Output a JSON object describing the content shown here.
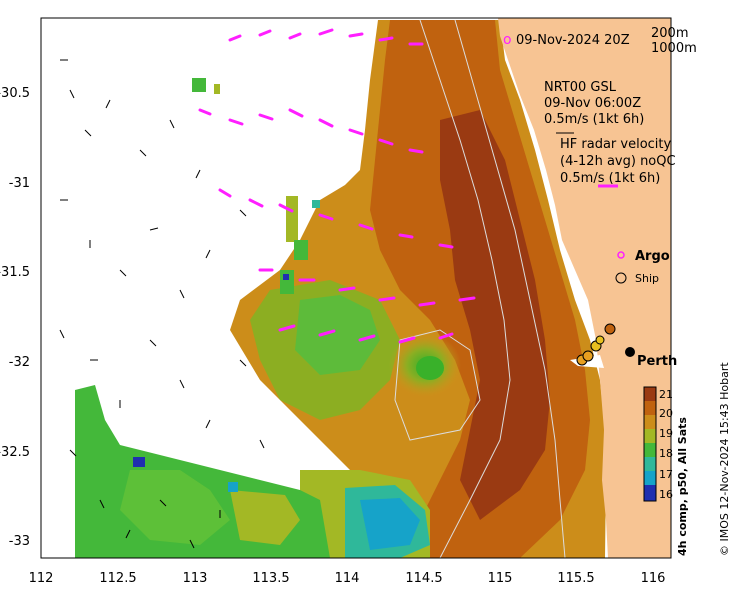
{
  "map": {
    "date_label": "09-Nov-2024 20Z",
    "isobath_labels": [
      "200m",
      "1000m"
    ],
    "gsl_lines": [
      "NRT00 GSL",
      "09-Nov 06:00Z",
      "0.5m/s (1kt 6h)"
    ],
    "hf_lines": [
      "HF radar velocity",
      "(4-12h avg) noQC",
      "0.5m/s (1kt 6h)"
    ],
    "argo_label": "Argo",
    "ship_label": "Ship",
    "city_label": "Perth",
    "credit": "© IMOS 12-Nov-2024 15:43 Hobart",
    "colorbar": {
      "title": "4h comp, p50, All Sats",
      "ticks": [
        "21",
        "20",
        "19",
        "18",
        "17",
        "16"
      ],
      "colors": [
        "#9a3a12",
        "#c0620f",
        "#cc8d1a",
        "#a3b825",
        "#44b83a",
        "#2fb89a",
        "#16a3c9",
        "#1f2fb0"
      ]
    },
    "x_ticks": [
      "112",
      "112.5",
      "113",
      "113.5",
      "114",
      "114.5",
      "115",
      "115.5",
      "116"
    ],
    "y_ticks": [
      "-30.5",
      "-31",
      "-31.5",
      "-32",
      "-32.5",
      "-33"
    ],
    "colors": {
      "land": "#f7c493",
      "hf_vector": "#ff1fff",
      "sst_warm": "#c0620f",
      "sst_cool": "#2fb89a"
    }
  }
}
